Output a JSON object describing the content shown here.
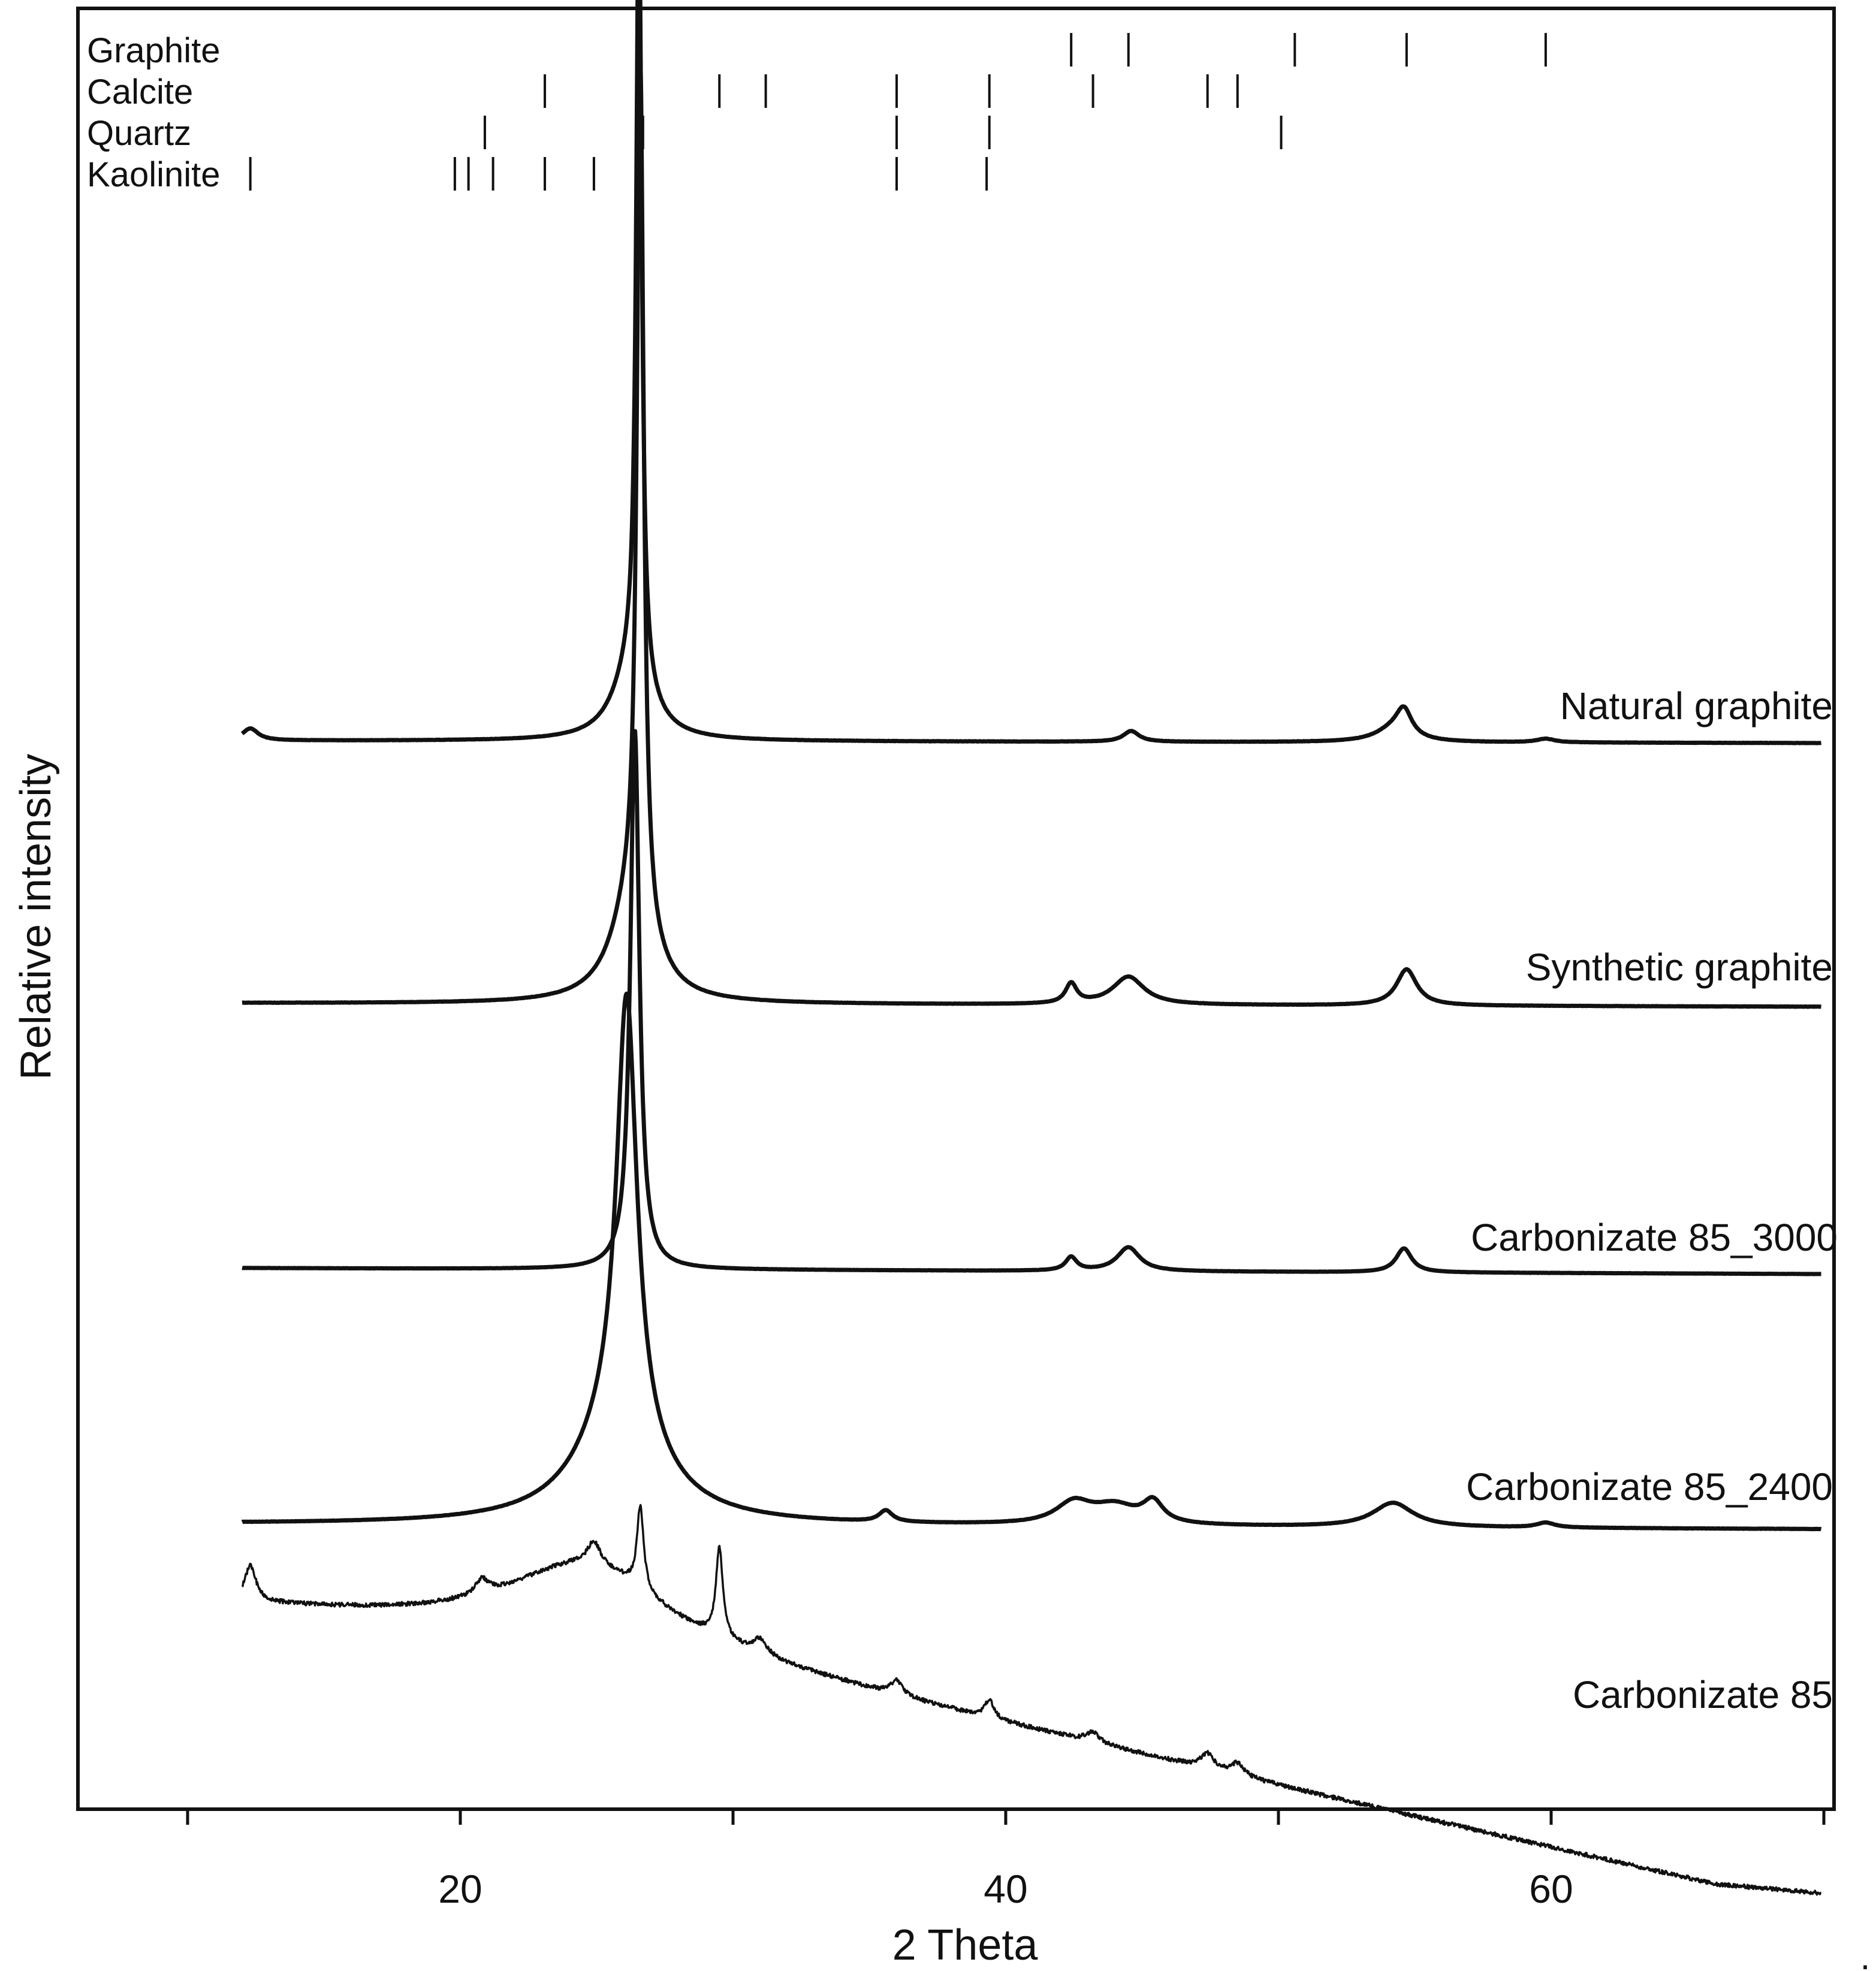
{
  "chart_data": {
    "type": "line",
    "xlabel": "2 Theta",
    "ylabel": "Relative intensity",
    "xlim": [
      6,
      70
    ],
    "xticks": [
      10,
      20,
      30,
      40,
      50,
      60,
      70
    ],
    "xtick_labels": [
      {
        "value": 20,
        "label": "20"
      },
      {
        "value": 40,
        "label": "40"
      },
      {
        "value": 60,
        "label": "60"
      }
    ],
    "reference_phases": [
      {
        "name": "Graphite",
        "positions": [
          26.6,
          42.4,
          44.5,
          50.6,
          54.7,
          59.8
        ]
      },
      {
        "name": "Calcite",
        "positions": [
          23.1,
          29.5,
          31.2,
          36.0,
          39.4,
          43.2,
          47.4,
          48.5
        ]
      },
      {
        "name": "Quartz",
        "positions": [
          20.9,
          26.7,
          36.0,
          39.4,
          50.1
        ]
      },
      {
        "name": "Kaolinite",
        "positions": [
          12.3,
          19.8,
          20.3,
          21.2,
          23.1,
          24.9,
          36.0,
          39.3
        ]
      }
    ],
    "series": [
      {
        "name": "Natural graphite",
        "baseline": 0.2,
        "peaks": [
          {
            "x": 12.3,
            "h": 0.5,
            "w": 0.35
          },
          {
            "x": 26.55,
            "h": 33.0,
            "w": 0.12
          },
          {
            "x": 26.3,
            "h": 3.0,
            "w": 0.8
          },
          {
            "x": 44.6,
            "h": 0.45,
            "w": 0.35
          },
          {
            "x": 54.6,
            "h": 1.1,
            "w": 0.35
          },
          {
            "x": 54.2,
            "h": 0.5,
            "w": 0.8
          },
          {
            "x": 59.8,
            "h": 0.15,
            "w": 0.4
          }
        ]
      },
      {
        "name": "Synthetic graphite",
        "baseline": 0.1,
        "peaks": [
          {
            "x": 26.6,
            "h": 26.0,
            "w": 0.15
          },
          {
            "x": 26.3,
            "h": 3.0,
            "w": 0.9
          },
          {
            "x": 42.4,
            "h": 0.6,
            "w": 0.25
          },
          {
            "x": 44.5,
            "h": 0.85,
            "w": 0.7
          },
          {
            "x": 54.7,
            "h": 1.1,
            "w": 0.45
          }
        ]
      },
      {
        "name": "Carbonizate 85_3000",
        "baseline": 0.25,
        "peaks": [
          {
            "x": 26.4,
            "h": 18.0,
            "w": 0.2
          },
          {
            "x": 42.4,
            "h": 0.45,
            "w": 0.25
          },
          {
            "x": 44.5,
            "h": 0.8,
            "w": 0.5
          },
          {
            "x": 54.6,
            "h": 0.8,
            "w": 0.35
          }
        ]
      },
      {
        "name": "Carbonizate 85_2400",
        "baseline": 0.3,
        "peaks": [
          {
            "x": 26.1,
            "h": 13.5,
            "w": 0.45
          },
          {
            "x": 25.8,
            "h": 3.0,
            "w": 1.8
          },
          {
            "x": 35.6,
            "h": 0.35,
            "w": 0.3
          },
          {
            "x": 42.5,
            "h": 0.65,
            "w": 0.8
          },
          {
            "x": 44.0,
            "h": 0.55,
            "w": 1.0
          },
          {
            "x": 45.4,
            "h": 0.65,
            "w": 0.45
          },
          {
            "x": 54.2,
            "h": 0.75,
            "w": 0.9
          },
          {
            "x": 59.8,
            "h": 0.15,
            "w": 0.4
          }
        ]
      },
      {
        "name": "Carbonizate 85",
        "baseline": 5.0,
        "peaks": [
          {
            "x": 24.5,
            "h": 2.4,
            "w": 3.5
          },
          {
            "x": 12.3,
            "h": 1.2,
            "w": 0.25
          },
          {
            "x": 20.8,
            "h": 0.5,
            "w": 0.3
          },
          {
            "x": 24.9,
            "h": 0.8,
            "w": 0.3
          },
          {
            "x": 26.6,
            "h": 2.8,
            "w": 0.15
          },
          {
            "x": 29.5,
            "h": 3.0,
            "w": 0.15
          },
          {
            "x": 31.0,
            "h": 0.5,
            "w": 0.3
          },
          {
            "x": 36.0,
            "h": 0.5,
            "w": 0.25
          },
          {
            "x": 39.4,
            "h": 0.6,
            "w": 0.2
          },
          {
            "x": 43.2,
            "h": 0.35,
            "w": 0.3
          },
          {
            "x": 47.4,
            "h": 0.5,
            "w": 0.3
          },
          {
            "x": 48.5,
            "h": 0.4,
            "w": 0.3
          }
        ]
      }
    ]
  }
}
